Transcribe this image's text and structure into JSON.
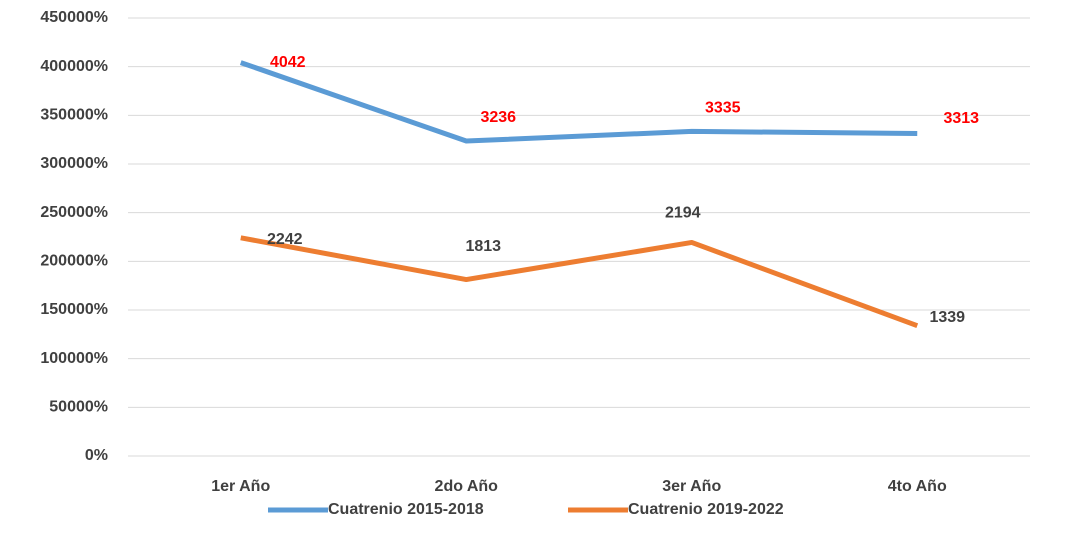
{
  "chart_data": {
    "type": "line",
    "categories": [
      "1er Año",
      "2do Año",
      "3er Año",
      "4to Año"
    ],
    "series": [
      {
        "name": "Cuatrenio 2015-2018",
        "color": "#5b9bd5",
        "label_color": "#ff0000",
        "values": [
          4042,
          3236,
          3335,
          3313
        ]
      },
      {
        "name": "Cuatrenio 2019-2022",
        "color": "#ed7d31",
        "label_color": "#404040",
        "values": [
          2242,
          1813,
          2194,
          1339
        ]
      }
    ],
    "ylim": [
      0,
      4500
    ],
    "yticks": [
      {
        "value": 0,
        "label": "0%"
      },
      {
        "value": 500,
        "label": "50000%"
      },
      {
        "value": 1000,
        "label": "100000%"
      },
      {
        "value": 1500,
        "label": "150000%"
      },
      {
        "value": 2000,
        "label": "200000%"
      },
      {
        "value": 2500,
        "label": "250000%"
      },
      {
        "value": 3000,
        "label": "300000%"
      },
      {
        "value": 3500,
        "label": "350000%"
      },
      {
        "value": 4000,
        "label": "400000%"
      },
      {
        "value": 4500,
        "label": "450000%"
      }
    ],
    "grid": true,
    "legend": "bottom"
  }
}
